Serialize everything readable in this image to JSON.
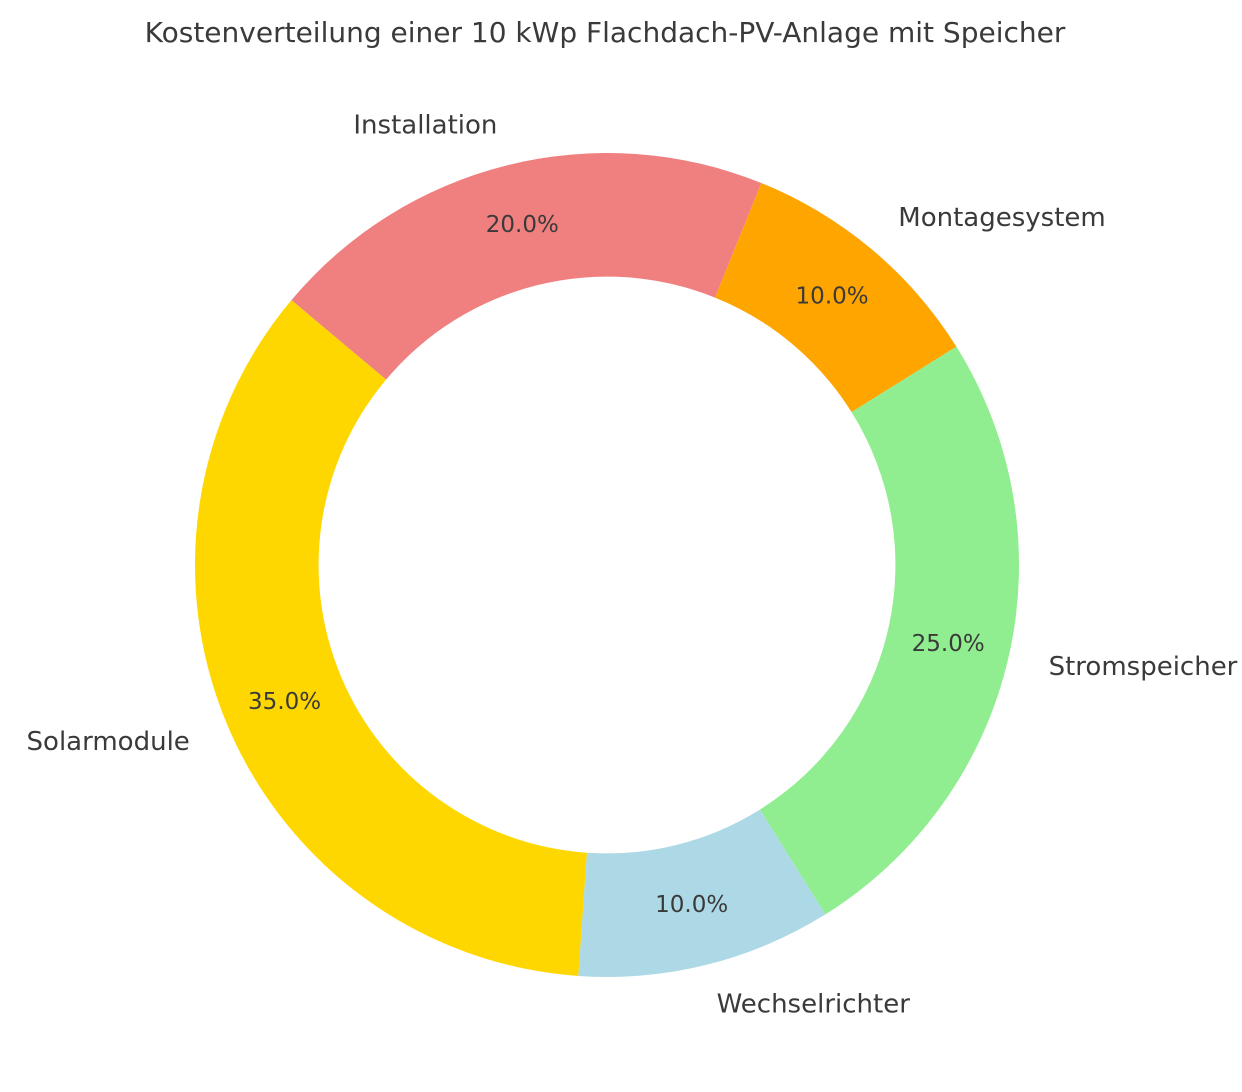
{
  "chart_data": {
    "type": "pie",
    "subtype": "donut",
    "title": "Kostenverteilung einer 10 kWp Flachdach-PV-Anlage mit Speicher",
    "categories": [
      "Installation",
      "Montagesystem",
      "Stromspeicher",
      "Wechselrichter",
      "Solarmodule"
    ],
    "values": [
      20.0,
      10.0,
      25.0,
      10.0,
      35.0
    ],
    "unit": "%",
    "pct_labels": [
      "20.0%",
      "10.0%",
      "25.0%",
      "10.0%",
      "35.0%"
    ],
    "colors": [
      "#F08080",
      "#FFA500",
      "#90EE90",
      "#ADD8E6",
      "#FFD700"
    ],
    "layout": {
      "start_angle_deg": 140,
      "direction": "clockwise",
      "inner_radius_ratio": 0.7,
      "label_distance_ratio": 1.1,
      "pct_distance_ratio": 0.85,
      "legend": "none",
      "background": "#FFFFFF",
      "text_color": "#3A3A3A"
    }
  }
}
